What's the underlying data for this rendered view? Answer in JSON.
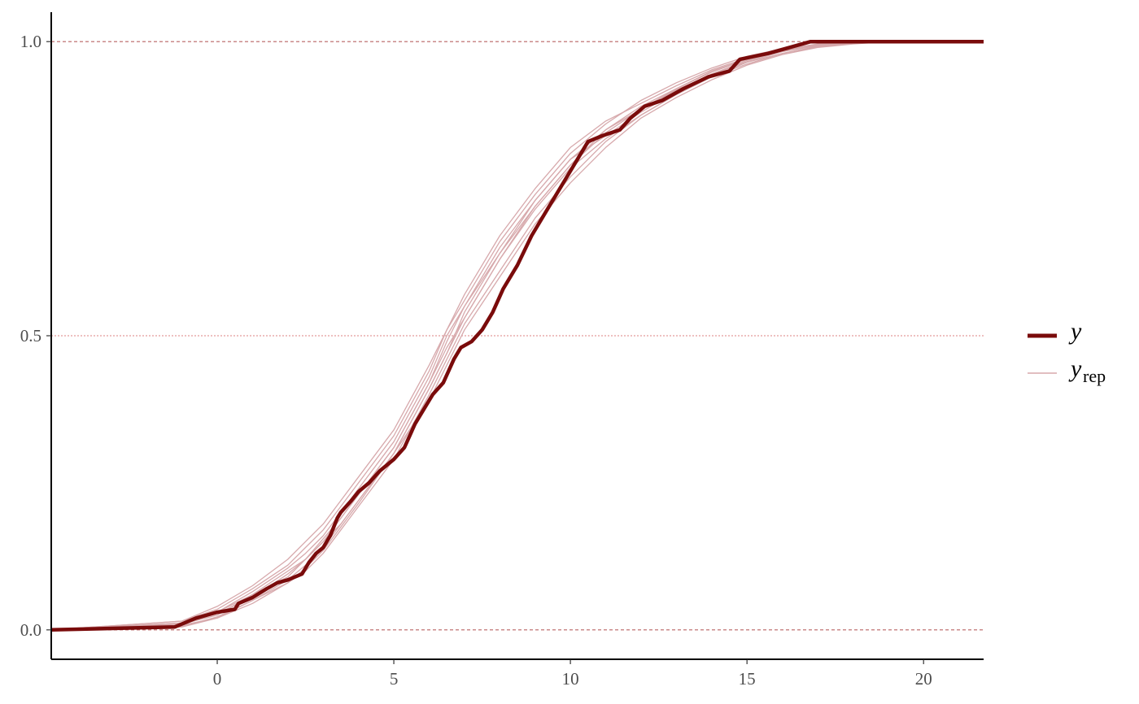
{
  "chart_data": {
    "type": "line",
    "title": "",
    "xlabel": "",
    "ylabel": "",
    "xlim": [
      -4.7,
      21.7
    ],
    "ylim": [
      -0.05,
      1.05
    ],
    "x_ticks": [
      0,
      5,
      10,
      15,
      20
    ],
    "x_tick_labels": [
      "0",
      "5",
      "10",
      "15",
      "20"
    ],
    "y_ticks": [
      0.0,
      0.5,
      1.0
    ],
    "y_tick_labels": [
      "0.0",
      "0.5",
      "1.0"
    ],
    "reference_lines": [
      0.0,
      0.5,
      1.0
    ],
    "grid": false,
    "legend_position": "right",
    "legend": [
      {
        "key": "y",
        "symbol": "y",
        "subscript": "",
        "style": "thick"
      },
      {
        "key": "yrep",
        "symbol": "y",
        "subscript": "rep",
        "style": "thin"
      }
    ],
    "colors": {
      "y": "#7a0b0b",
      "yrep": "#d7a9ac",
      "reference": "#b86464",
      "axis": "#000000"
    },
    "series": [
      {
        "key": "y",
        "x": [
          -4.7,
          -1.2,
          -0.6,
          0.0,
          0.5,
          0.6,
          1.0,
          1.4,
          1.7,
          2.0,
          2.4,
          2.6,
          2.8,
          3.0,
          3.2,
          3.4,
          3.5,
          3.8,
          4.0,
          4.3,
          4.6,
          5.0,
          5.3,
          5.6,
          5.9,
          6.1,
          6.4,
          6.7,
          6.9,
          7.2,
          7.5,
          7.8,
          8.1,
          8.5,
          8.9,
          9.3,
          9.8,
          10.2,
          10.5,
          10.9,
          11.4,
          11.7,
          12.1,
          12.6,
          13.2,
          13.9,
          14.5,
          14.8,
          15.6,
          16.2,
          16.8,
          21.7
        ],
        "y": [
          0.0,
          0.005,
          0.02,
          0.03,
          0.035,
          0.045,
          0.055,
          0.07,
          0.08,
          0.085,
          0.095,
          0.115,
          0.13,
          0.14,
          0.16,
          0.19,
          0.2,
          0.22,
          0.235,
          0.25,
          0.27,
          0.29,
          0.31,
          0.35,
          0.38,
          0.4,
          0.42,
          0.46,
          0.48,
          0.49,
          0.51,
          0.54,
          0.58,
          0.62,
          0.67,
          0.71,
          0.76,
          0.8,
          0.83,
          0.84,
          0.85,
          0.87,
          0.89,
          0.9,
          0.92,
          0.94,
          0.95,
          0.97,
          0.98,
          0.99,
          1.0,
          1.0
        ]
      },
      {
        "key": "yrep",
        "x": [
          -4.7,
          -1.0,
          0.0,
          1.0,
          2.0,
          2.5,
          3.0,
          3.5,
          4.0,
          5.0,
          6.0,
          6.5,
          7.0,
          8.0,
          9.0,
          10.0,
          11.0,
          12.0,
          13.0,
          14.0,
          15.0,
          16.0,
          17.0,
          18.0,
          19.0,
          21.7
        ],
        "y": [
          0.0,
          0.01,
          0.03,
          0.06,
          0.1,
          0.12,
          0.15,
          0.19,
          0.23,
          0.31,
          0.42,
          0.48,
          0.53,
          0.63,
          0.72,
          0.79,
          0.85,
          0.89,
          0.92,
          0.95,
          0.97,
          0.985,
          0.993,
          0.998,
          1.0,
          1.0
        ]
      },
      {
        "key": "yrep",
        "x": [
          -4.7,
          -1.0,
          0.0,
          1.0,
          2.0,
          2.5,
          3.0,
          3.5,
          4.0,
          5.0,
          6.0,
          6.5,
          7.0,
          8.0,
          9.0,
          10.0,
          11.0,
          12.0,
          13.0,
          14.0,
          15.0,
          16.0,
          17.0,
          18.0,
          19.0,
          21.7
        ],
        "y": [
          0.0,
          0.015,
          0.035,
          0.07,
          0.11,
          0.14,
          0.17,
          0.21,
          0.25,
          0.33,
          0.44,
          0.51,
          0.56,
          0.66,
          0.74,
          0.81,
          0.86,
          0.9,
          0.93,
          0.955,
          0.975,
          0.988,
          0.995,
          0.999,
          1.0,
          1.0
        ]
      },
      {
        "key": "yrep",
        "x": [
          -4.7,
          -1.0,
          0.0,
          1.0,
          2.0,
          2.5,
          3.0,
          3.5,
          4.0,
          5.0,
          6.0,
          6.5,
          7.0,
          8.0,
          9.0,
          10.0,
          11.0,
          12.0,
          13.0,
          14.0,
          15.0,
          16.0,
          17.0,
          18.0,
          19.0,
          21.7
        ],
        "y": [
          0.0,
          0.005,
          0.02,
          0.045,
          0.08,
          0.1,
          0.13,
          0.17,
          0.21,
          0.29,
          0.4,
          0.46,
          0.52,
          0.61,
          0.7,
          0.77,
          0.83,
          0.875,
          0.91,
          0.94,
          0.965,
          0.98,
          0.992,
          0.997,
          1.0,
          1.0
        ]
      },
      {
        "key": "yrep",
        "x": [
          -4.7,
          -1.0,
          0.0,
          1.0,
          2.0,
          2.5,
          3.0,
          3.5,
          4.0,
          5.0,
          6.0,
          6.5,
          7.0,
          8.0,
          9.0,
          10.0,
          11.0,
          12.0,
          13.0,
          14.0,
          15.0,
          16.0,
          17.0,
          18.0,
          19.0,
          21.7
        ],
        "y": [
          0.0,
          0.01,
          0.025,
          0.06,
          0.09,
          0.12,
          0.15,
          0.18,
          0.22,
          0.3,
          0.41,
          0.47,
          0.54,
          0.64,
          0.73,
          0.8,
          0.84,
          0.88,
          0.915,
          0.945,
          0.968,
          0.984,
          0.994,
          0.998,
          1.0,
          1.0
        ]
      },
      {
        "key": "yrep",
        "x": [
          -4.7,
          -1.0,
          0.0,
          1.0,
          2.0,
          2.5,
          3.0,
          3.5,
          4.0,
          5.0,
          6.0,
          6.5,
          7.0,
          8.0,
          9.0,
          10.0,
          11.0,
          12.0,
          13.0,
          14.0,
          15.0,
          16.0,
          17.0,
          18.0,
          19.0,
          21.7
        ],
        "y": [
          0.0,
          0.012,
          0.03,
          0.065,
          0.105,
          0.13,
          0.16,
          0.2,
          0.24,
          0.32,
          0.43,
          0.5,
          0.55,
          0.65,
          0.73,
          0.8,
          0.85,
          0.885,
          0.92,
          0.948,
          0.97,
          0.986,
          0.995,
          0.999,
          1.0,
          1.0
        ]
      },
      {
        "key": "yrep",
        "x": [
          -4.7,
          -1.0,
          0.0,
          1.0,
          2.0,
          2.5,
          3.0,
          3.5,
          4.0,
          5.0,
          6.0,
          6.5,
          7.0,
          8.0,
          9.0,
          10.0,
          11.0,
          12.0,
          13.0,
          14.0,
          15.0,
          16.0,
          17.0,
          18.0,
          19.0,
          21.7
        ],
        "y": [
          0.0,
          0.008,
          0.02,
          0.05,
          0.085,
          0.11,
          0.14,
          0.18,
          0.22,
          0.3,
          0.39,
          0.45,
          0.51,
          0.6,
          0.69,
          0.76,
          0.82,
          0.87,
          0.905,
          0.935,
          0.96,
          0.978,
          0.99,
          0.996,
          1.0,
          1.0
        ]
      },
      {
        "key": "yrep",
        "x": [
          -4.7,
          -1.0,
          0.0,
          1.0,
          2.0,
          2.5,
          3.0,
          3.5,
          4.0,
          5.0,
          6.0,
          6.5,
          7.0,
          8.0,
          9.0,
          10.0,
          11.0,
          12.0,
          13.0,
          14.0,
          15.0,
          16.0,
          17.0,
          18.0,
          19.0,
          21.7
        ],
        "y": [
          0.0,
          0.015,
          0.04,
          0.075,
          0.12,
          0.15,
          0.18,
          0.22,
          0.26,
          0.34,
          0.45,
          0.51,
          0.57,
          0.67,
          0.75,
          0.82,
          0.865,
          0.895,
          0.925,
          0.952,
          0.972,
          0.987,
          0.996,
          0.999,
          1.0,
          1.0
        ]
      },
      {
        "key": "yrep",
        "x": [
          -4.7,
          -1.0,
          0.0,
          1.0,
          2.0,
          2.5,
          3.0,
          3.5,
          4.0,
          5.0,
          6.0,
          6.5,
          7.0,
          8.0,
          9.0,
          10.0,
          11.0,
          12.0,
          13.0,
          14.0,
          15.0,
          16.0,
          17.0,
          18.0,
          19.0,
          21.7
        ],
        "y": [
          0.0,
          0.01,
          0.028,
          0.055,
          0.095,
          0.12,
          0.155,
          0.19,
          0.23,
          0.31,
          0.42,
          0.49,
          0.55,
          0.64,
          0.72,
          0.79,
          0.845,
          0.885,
          0.918,
          0.944,
          0.966,
          0.983,
          0.993,
          0.998,
          1.0,
          1.0
        ]
      },
      {
        "key": "yrep",
        "x": [
          -4.7,
          -1.0,
          0.0,
          1.0,
          2.0,
          2.5,
          3.0,
          3.5,
          4.0,
          5.0,
          6.0,
          6.5,
          7.0,
          8.0,
          9.0,
          10.0,
          11.0,
          12.0,
          13.0,
          14.0,
          15.0,
          16.0,
          17.0,
          18.0,
          19.0,
          21.7
        ],
        "y": [
          0.0,
          0.006,
          0.022,
          0.05,
          0.08,
          0.105,
          0.135,
          0.175,
          0.215,
          0.3,
          0.41,
          0.47,
          0.53,
          0.63,
          0.715,
          0.785,
          0.835,
          0.875,
          0.91,
          0.94,
          0.962,
          0.98,
          0.991,
          0.997,
          1.0,
          1.0
        ]
      }
    ]
  }
}
